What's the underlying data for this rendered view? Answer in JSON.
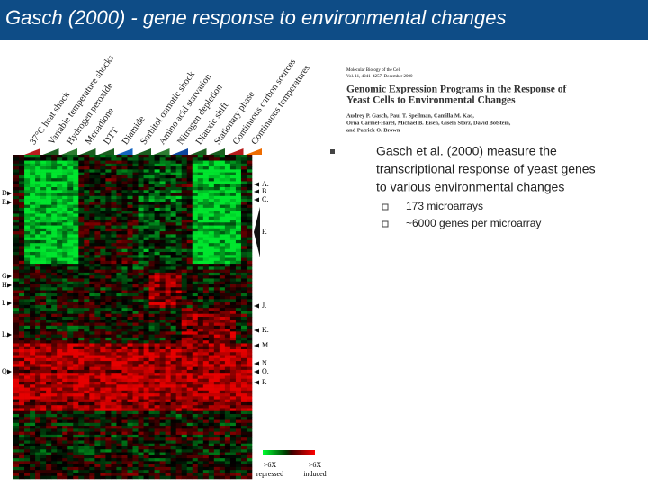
{
  "header": {
    "title": "Gasch (2000) - gene response to environmental changes"
  },
  "figure": {
    "conditions": [
      "37°C heat shock",
      "Variable temperature shocks",
      "Hydrogen peroxide",
      "Menadione",
      "DTT",
      "Diamide",
      "Sorbitol osmotic shock",
      "Amino acid starvation",
      "Nitrogen depletion",
      "Diauxic shift",
      "Stationary phase",
      "Continuous carbon sources",
      "Continuous temperatures"
    ],
    "left_labels": [
      "D.",
      "E.",
      "G.",
      "H.",
      "I.",
      "L.",
      "Q."
    ],
    "right_labels": [
      "A.",
      "B.",
      "C.",
      "F.",
      "J.",
      "K.",
      "M.",
      "N.",
      "O.",
      "P."
    ],
    "legend": {
      "left": [
        ">6X",
        "repressed"
      ],
      "right": [
        ">6X",
        "induced"
      ]
    }
  },
  "paper": {
    "journal": "Molecular Biology of the Cell",
    "volume": "Vol. 11, 4241–4257, December 2000",
    "title": [
      "Genomic Expression Programs in the Response of",
      "Yeast Cells to Environmental Changes"
    ],
    "authors": [
      "Audrey P. Gasch, Paul T. Spellman, Camilla M. Kao,",
      "Orna Carmel-Harel, Michael B. Eisen, Gisela Storz, David Botstein,",
      "and Patrick O. Brown"
    ]
  },
  "bullets": {
    "main": [
      "Gasch et al. (2000) measure the",
      "transcriptional response of yeast genes",
      "to various environmental changes"
    ],
    "sub": [
      "173 microarrays",
      "~6000 genes per microarray"
    ]
  }
}
